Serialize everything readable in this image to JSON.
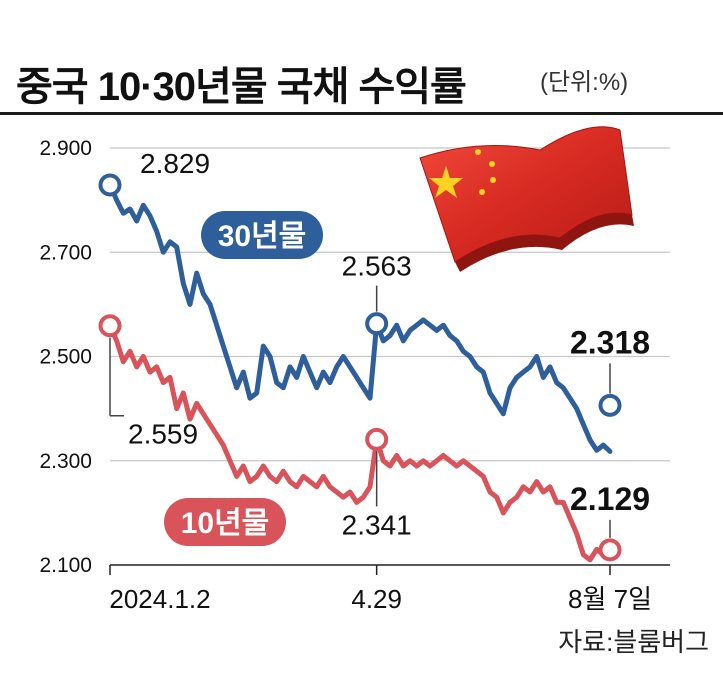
{
  "header": {
    "title": "중국 10·30년물 국채 수익률",
    "unit": "(단위:%)"
  },
  "source": "자료:블룸버그",
  "colors": {
    "series_30y": "#2f5f9a",
    "series_10y": "#d9535a",
    "grid": "#c8c8c8",
    "axis": "#222222"
  },
  "chart_data": {
    "type": "line",
    "title": "중국 10·30년물 국채 수익률",
    "ylabel": "(단위:%)",
    "ylim": [
      2.1,
      2.9
    ],
    "yticks": [
      2.1,
      2.3,
      2.5,
      2.7,
      2.9
    ],
    "ytick_labels": [
      "2.100",
      "2.300",
      "2.500",
      "2.700",
      "2.900"
    ],
    "x_labels": [
      "2024.1.2",
      "4.29",
      "8월 7일"
    ],
    "grid": true,
    "series": [
      {
        "name": "30년물",
        "values": [
          2.829,
          2.8,
          2.775,
          2.783,
          2.76,
          2.79,
          2.77,
          2.74,
          2.7,
          2.72,
          2.71,
          2.64,
          2.6,
          2.66,
          2.62,
          2.6,
          2.56,
          2.52,
          2.48,
          2.44,
          2.47,
          2.42,
          2.43,
          2.52,
          2.5,
          2.45,
          2.44,
          2.48,
          2.46,
          2.5,
          2.47,
          2.44,
          2.47,
          2.45,
          2.48,
          2.5,
          2.48,
          2.46,
          2.44,
          2.42,
          2.563,
          2.53,
          2.54,
          2.56,
          2.53,
          2.55,
          2.56,
          2.57,
          2.56,
          2.55,
          2.56,
          2.54,
          2.53,
          2.51,
          2.5,
          2.48,
          2.47,
          2.43,
          2.41,
          2.39,
          2.44,
          2.46,
          2.47,
          2.48,
          2.5,
          2.46,
          2.48,
          2.45,
          2.44,
          2.42,
          2.4,
          2.37,
          2.34,
          2.32,
          2.33,
          2.318
        ],
        "point_labels": [
          {
            "index": 0,
            "text": "2.829"
          },
          {
            "index": 40,
            "text": "2.563"
          },
          {
            "index": 75,
            "text": "2.318"
          }
        ]
      },
      {
        "name": "10년물",
        "values": [
          2.559,
          2.53,
          2.49,
          2.51,
          2.48,
          2.5,
          2.47,
          2.48,
          2.45,
          2.46,
          2.4,
          2.43,
          2.38,
          2.41,
          2.39,
          2.37,
          2.35,
          2.33,
          2.3,
          2.27,
          2.29,
          2.26,
          2.27,
          2.29,
          2.27,
          2.26,
          2.28,
          2.26,
          2.25,
          2.27,
          2.26,
          2.25,
          2.27,
          2.25,
          2.24,
          2.23,
          2.24,
          2.22,
          2.23,
          2.25,
          2.341,
          2.3,
          2.29,
          2.31,
          2.29,
          2.3,
          2.29,
          2.3,
          2.29,
          2.3,
          2.31,
          2.3,
          2.29,
          2.3,
          2.29,
          2.28,
          2.27,
          2.24,
          2.23,
          2.2,
          2.22,
          2.23,
          2.25,
          2.24,
          2.26,
          2.24,
          2.25,
          2.22,
          2.22,
          2.19,
          2.16,
          2.12,
          2.11,
          2.13,
          2.12,
          2.129
        ],
        "point_labels": [
          {
            "index": 0,
            "text": "2.559"
          },
          {
            "index": 40,
            "text": "2.341"
          },
          {
            "index": 75,
            "text": "2.129"
          }
        ]
      }
    ]
  }
}
